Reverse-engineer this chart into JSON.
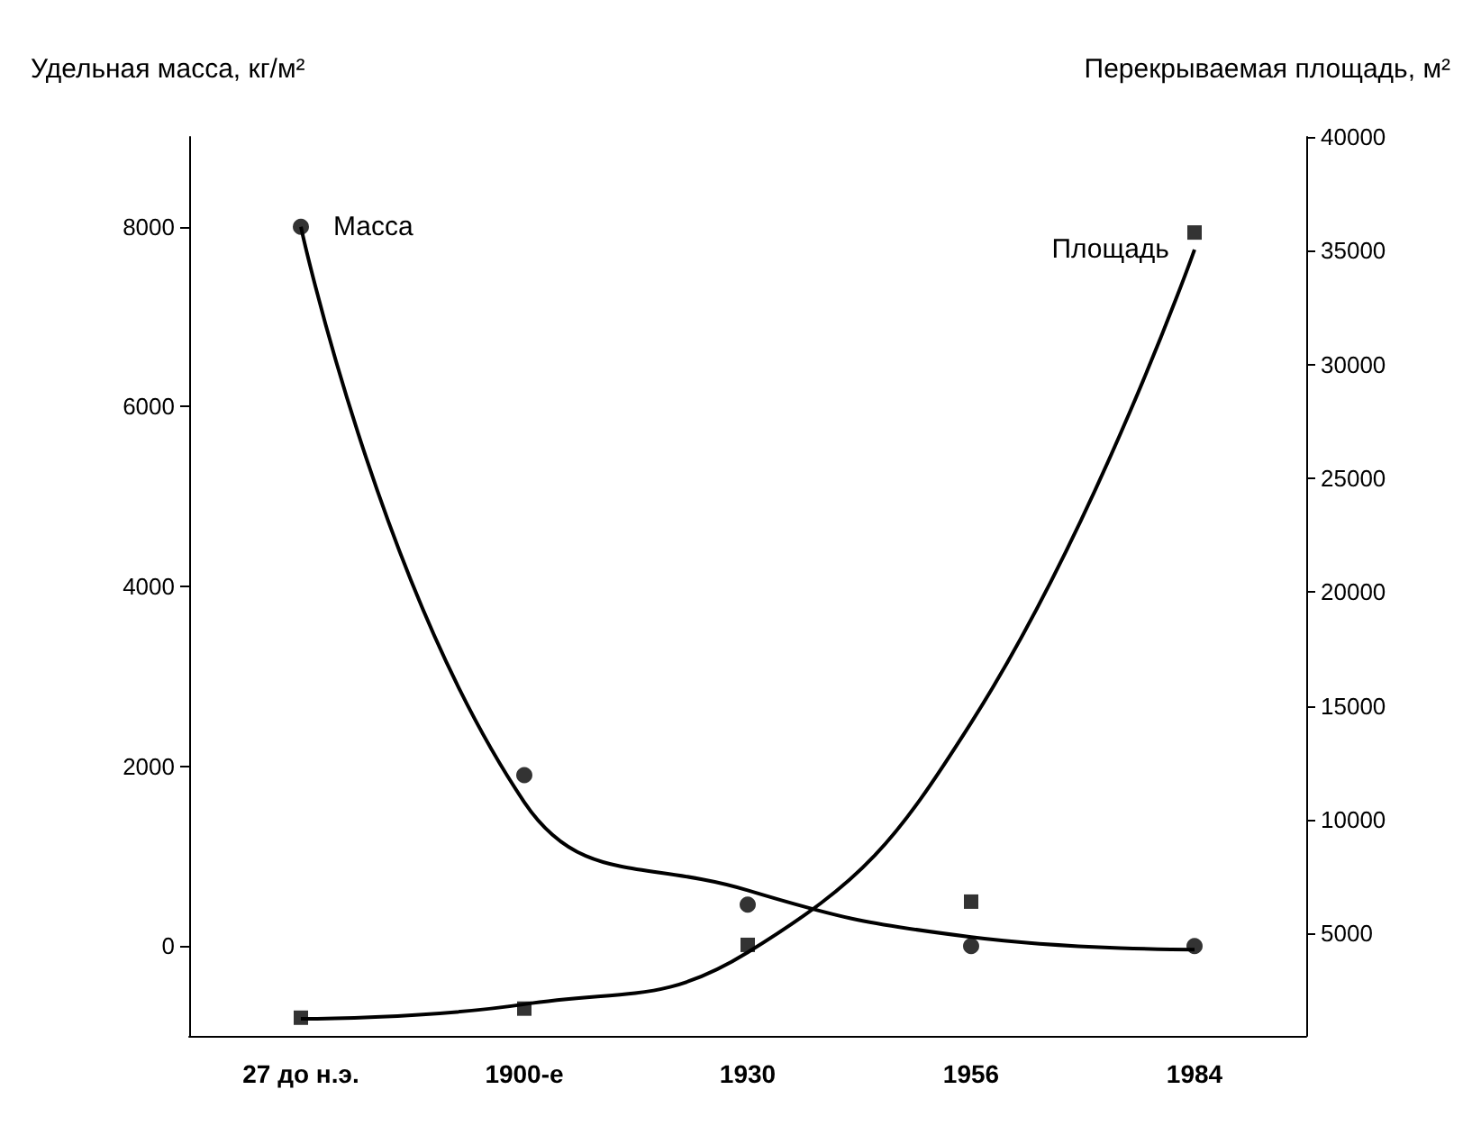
{
  "chart_data": {
    "type": "scatter",
    "ylabel": "Удельная масса, кг/м²",
    "y2label": "Перекрываемая площадь, м²",
    "categories": [
      "27 до н.э.",
      "1900-е",
      "1930",
      "1956",
      "1984"
    ],
    "ylim": [
      -1000,
      9000
    ],
    "yticks": [
      0,
      2000,
      4000,
      6000,
      8000
    ],
    "y2lim": [
      500,
      40000
    ],
    "y2ticks": [
      5000,
      10000,
      15000,
      20000,
      25000,
      30000,
      35000,
      40000
    ],
    "grid": false,
    "legend": false,
    "series": [
      {
        "marker": "circle",
        "color": "#000000",
        "values": [
          8000,
          1900,
          460,
          0,
          0
        ]
      },
      {
        "marker": "square",
        "axis": "y2",
        "color": "#000000",
        "values": [
          1300,
          1700,
          4500,
          6400,
          35800
        ]
      },
      {
        "type": "line",
        "name": "Масса",
        "marker": "none",
        "color": "#000000",
        "values": [
          8000,
          1600,
          620,
          100,
          -40
        ]
      },
      {
        "type": "line",
        "name": "Площадь",
        "marker": "none",
        "axis": "y2",
        "color": "#000000",
        "values": [
          1250,
          1890,
          4170,
          14260,
          35050
        ]
      }
    ]
  }
}
